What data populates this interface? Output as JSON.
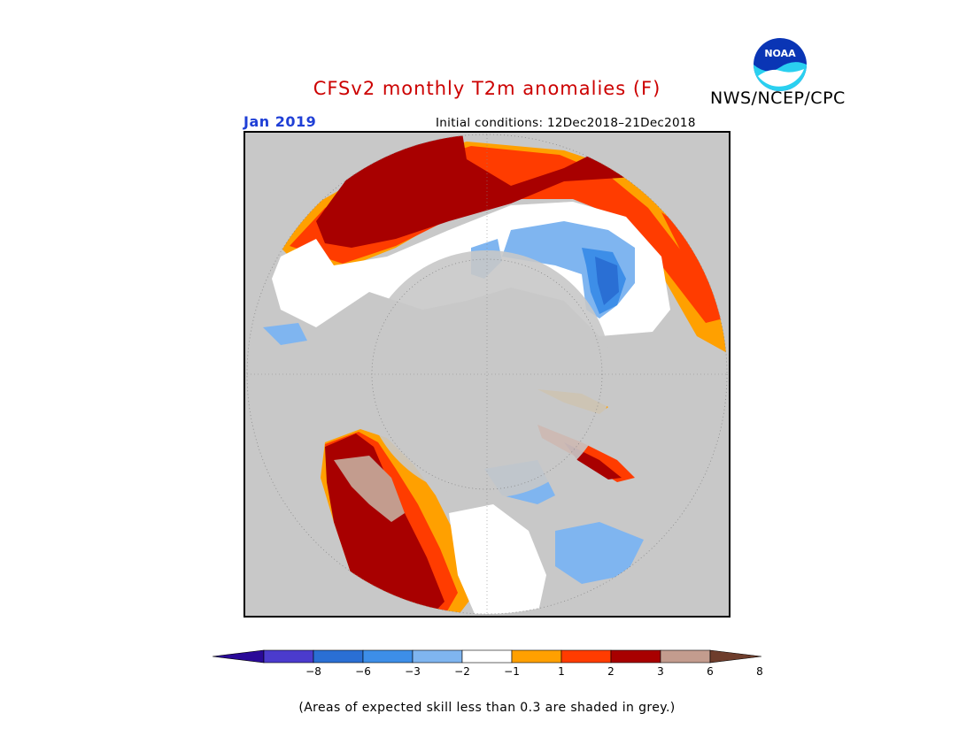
{
  "header": {
    "title": "CFSv2 monthly T2m anomalies (F)",
    "title_color": "#cc0000",
    "organization": "NWS/NCEP/CPC",
    "logo_text": "NOAA",
    "logo_icon": "noaa-logo-icon"
  },
  "map": {
    "month": "Jan 2019",
    "month_color": "#1f3fd6",
    "initial_conditions": "Initial conditions: 12Dec2018–21Dec2018",
    "projection": "north polar stereographic",
    "low_skill_color": "#c8c8c8"
  },
  "legend": {
    "colors": [
      "#2a0a98",
      "#4b3bcd",
      "#2a6fd4",
      "#3d8ee8",
      "#7fb5f0",
      "#ffffff",
      "#ffa000",
      "#ff3c00",
      "#a80000",
      "#c39c8e",
      "#6e3d2c"
    ],
    "tick_labels": [
      "−8",
      "−6",
      "−3",
      "−2",
      "−1",
      "1",
      "2",
      "3",
      "6",
      "8"
    ]
  },
  "footnote": "(Areas of expected skill less than 0.3 are shaded in grey.)"
}
